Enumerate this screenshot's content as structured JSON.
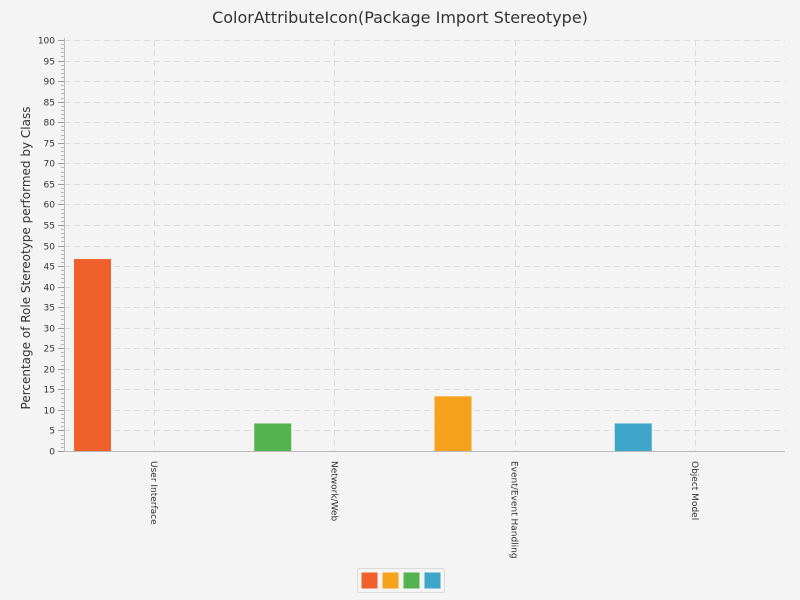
{
  "chart_data": {
    "type": "bar",
    "title": "ColorAttributeIcon(Package Import Stereotype)",
    "xlabel": "",
    "ylabel": "Percentage of Role Stereotype performed by Class",
    "ylim": [
      0,
      100
    ],
    "ytick_step": 5,
    "yticks": [
      "0",
      "5",
      "10",
      "15",
      "20",
      "25",
      "30",
      "35",
      "40",
      "45",
      "50",
      "55",
      "60",
      "65",
      "70",
      "75",
      "80",
      "85",
      "90",
      "95",
      "100"
    ],
    "grid": true,
    "legend_position": "bottom",
    "categories": [
      "User Interface",
      "Network/Web",
      "Event/Event Handling",
      "Object Model"
    ],
    "values": [
      46.7,
      6.7,
      13.3,
      6.7
    ],
    "colors": [
      "#f0602c",
      "#53b351",
      "#f7a21c",
      "#3ea6c8"
    ],
    "legend": {
      "entries": [
        {
          "color": "#f0602c"
        },
        {
          "color": "#f7a21c"
        },
        {
          "color": "#53b351"
        },
        {
          "color": "#3ea6c8"
        }
      ]
    }
  }
}
